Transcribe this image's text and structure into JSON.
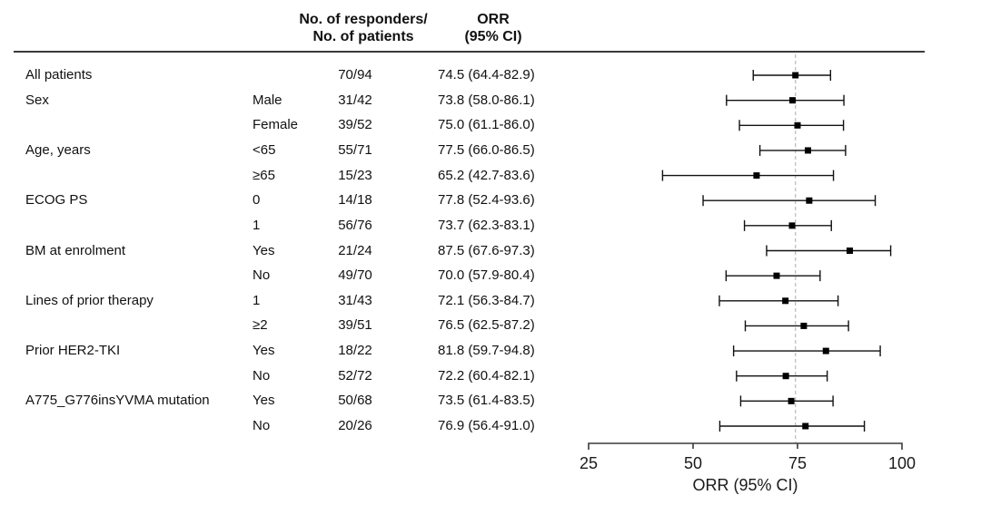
{
  "table_headers": {
    "responders": [
      "No. of responders/",
      "No. of patients"
    ],
    "orr": [
      "ORR",
      "(95% CI)"
    ]
  },
  "chart_data": {
    "type": "scatter",
    "subtype": "forest-plot",
    "xlabel": "ORR (95% CI)",
    "xlim": [
      25,
      100
    ],
    "x_ticks": [
      "25",
      "50",
      "75",
      "100"
    ],
    "reference_line_x": 74.5,
    "marker_color": "#000000",
    "line_color": "#111111",
    "reference_line_color": "#bfbfbf",
    "axis_color": "#3a3a3a",
    "rows": [
      {
        "group": "All patients",
        "subgroup": "",
        "responders": "70/94",
        "orr_ci": "74.5 (64.4-82.9)",
        "est": 74.5,
        "lo": 64.4,
        "hi": 82.9
      },
      {
        "group": "Sex",
        "subgroup": "Male",
        "responders": "31/42",
        "orr_ci": "73.8 (58.0-86.1)",
        "est": 73.8,
        "lo": 58.0,
        "hi": 86.1
      },
      {
        "group": "",
        "subgroup": "Female",
        "responders": "39/52",
        "orr_ci": "75.0 (61.1-86.0)",
        "est": 75.0,
        "lo": 61.1,
        "hi": 86.0
      },
      {
        "group": "Age, years",
        "subgroup": "<65",
        "responders": "55/71",
        "orr_ci": "77.5 (66.0-86.5)",
        "est": 77.5,
        "lo": 66.0,
        "hi": 86.5
      },
      {
        "group": "",
        "subgroup": "≥65",
        "responders": "15/23",
        "orr_ci": "65.2 (42.7-83.6)",
        "est": 65.2,
        "lo": 42.7,
        "hi": 83.6
      },
      {
        "group": "ECOG PS",
        "subgroup": "0",
        "responders": "14/18",
        "orr_ci": "77.8 (52.4-93.6)",
        "est": 77.8,
        "lo": 52.4,
        "hi": 93.6
      },
      {
        "group": "",
        "subgroup": "1",
        "responders": "56/76",
        "orr_ci": "73.7 (62.3-83.1)",
        "est": 73.7,
        "lo": 62.3,
        "hi": 83.1
      },
      {
        "group": "BM at enrolment",
        "subgroup": "Yes",
        "responders": "21/24",
        "orr_ci": "87.5 (67.6-97.3)",
        "est": 87.5,
        "lo": 67.6,
        "hi": 97.3
      },
      {
        "group": "",
        "subgroup": "No",
        "responders": "49/70",
        "orr_ci": "70.0 (57.9-80.4)",
        "est": 70.0,
        "lo": 57.9,
        "hi": 80.4
      },
      {
        "group": "Lines of prior therapy",
        "subgroup": "1",
        "responders": "31/43",
        "orr_ci": "72.1 (56.3-84.7)",
        "est": 72.1,
        "lo": 56.3,
        "hi": 84.7
      },
      {
        "group": "",
        "subgroup": "≥2",
        "responders": "39/51",
        "orr_ci": "76.5 (62.5-87.2)",
        "est": 76.5,
        "lo": 62.5,
        "hi": 87.2
      },
      {
        "group": "Prior HER2-TKI",
        "subgroup": "Yes",
        "responders": "18/22",
        "orr_ci": "81.8 (59.7-94.8)",
        "est": 81.8,
        "lo": 59.7,
        "hi": 94.8
      },
      {
        "group": "",
        "subgroup": "No",
        "responders": "52/72",
        "orr_ci": "72.2 (60.4-82.1)",
        "est": 72.2,
        "lo": 60.4,
        "hi": 82.1
      },
      {
        "group": "A775_G776insYVMA mutation",
        "subgroup": "Yes",
        "responders": "50/68",
        "orr_ci": "73.5 (61.4-83.5)",
        "est": 73.5,
        "lo": 61.4,
        "hi": 83.5
      },
      {
        "group": "",
        "subgroup": "No",
        "responders": "20/26",
        "orr_ci": "76.9 (56.4-91.0)",
        "est": 76.9,
        "lo": 56.4,
        "hi": 91.0
      }
    ]
  }
}
